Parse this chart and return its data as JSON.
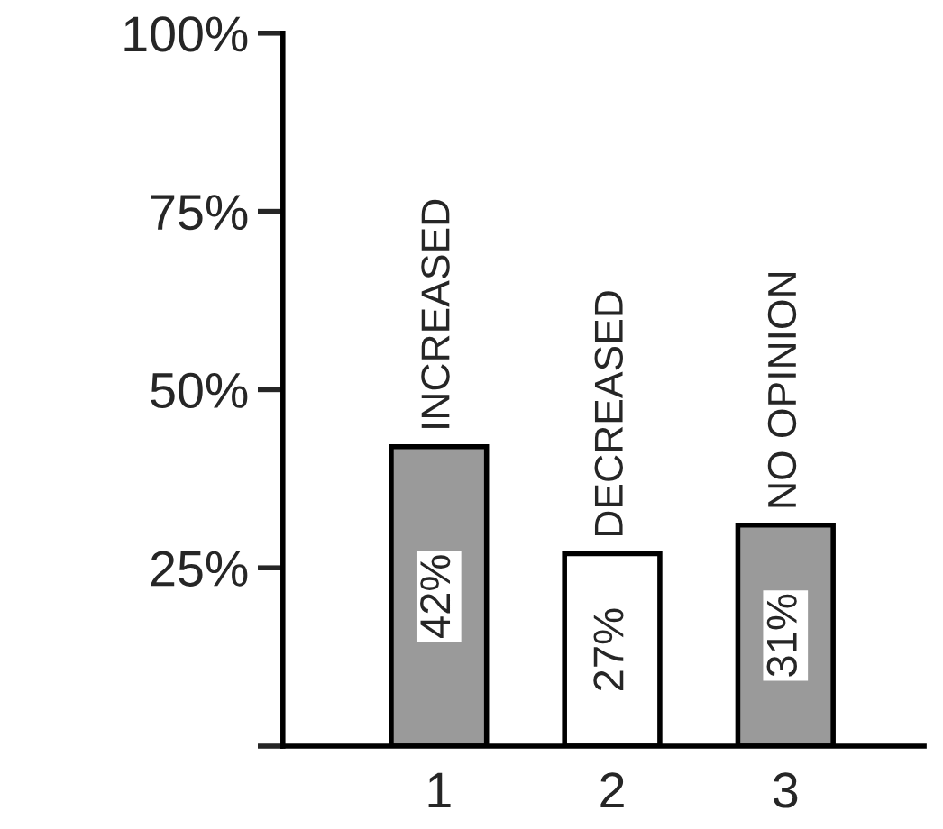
{
  "chart_data": {
    "type": "bar",
    "categories": [
      "1",
      "2",
      "3"
    ],
    "values": [
      42,
      27,
      31
    ],
    "colors": [
      "#9a9a9a",
      "#ffffff",
      "#9a9a9a"
    ],
    "value_labels": [
      "42%",
      "27%",
      "31%"
    ],
    "annotations": [
      {
        "text": "INCREASED",
        "x": "1",
        "y": 42
      },
      {
        "text": "DECREASED",
        "x": "2",
        "y": 27
      },
      {
        "text": "NO OPINION",
        "x": "3",
        "y": 31
      }
    ],
    "ylim": [
      0,
      100
    ],
    "yticks": [
      {
        "value": 0,
        "label": null
      },
      {
        "value": 25,
        "label": "25%"
      },
      {
        "value": 50,
        "label": "50%"
      },
      {
        "value": 75,
        "label": "75%"
      },
      {
        "value": 100,
        "label": "100%"
      }
    ],
    "grid": false,
    "legend": false
  }
}
